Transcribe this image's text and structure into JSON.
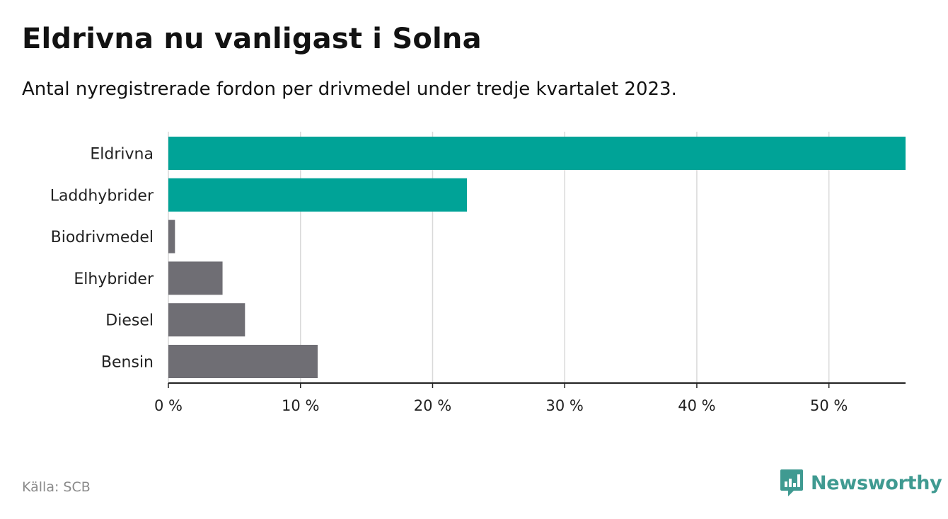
{
  "title": "Eldrivna nu vanligast i Solna",
  "subtitle": "Antal nyregistrerade fordon per drivmedel under tredje kvartalet 2023.",
  "source": "Källa: SCB",
  "brand": {
    "name": "Newsworthy",
    "icon": "newsworthy-logo-icon"
  },
  "colors": {
    "highlight": "#00a397",
    "default": "#6f6e74",
    "grid": "#d9d9d9",
    "axis": "#222222",
    "brand": "#3f9a91"
  },
  "chart_data": {
    "type": "bar",
    "orientation": "horizontal",
    "categories": [
      "Eldrivna",
      "Laddhybrider",
      "Biodrivmedel",
      "Elhybrider",
      "Diesel",
      "Bensin"
    ],
    "values": [
      55.8,
      22.6,
      0.5,
      4.1,
      5.8,
      11.3
    ],
    "highlighted": [
      true,
      true,
      false,
      false,
      false,
      false
    ],
    "xlim": [
      0,
      55.8
    ],
    "xticks": [
      0,
      10,
      20,
      30,
      40,
      50
    ],
    "xtick_labels": [
      "0 %",
      "10 %",
      "20 %",
      "30 %",
      "40 %",
      "50 %"
    ],
    "xlabel": "",
    "ylabel": "",
    "grid": true,
    "unit": "%"
  }
}
